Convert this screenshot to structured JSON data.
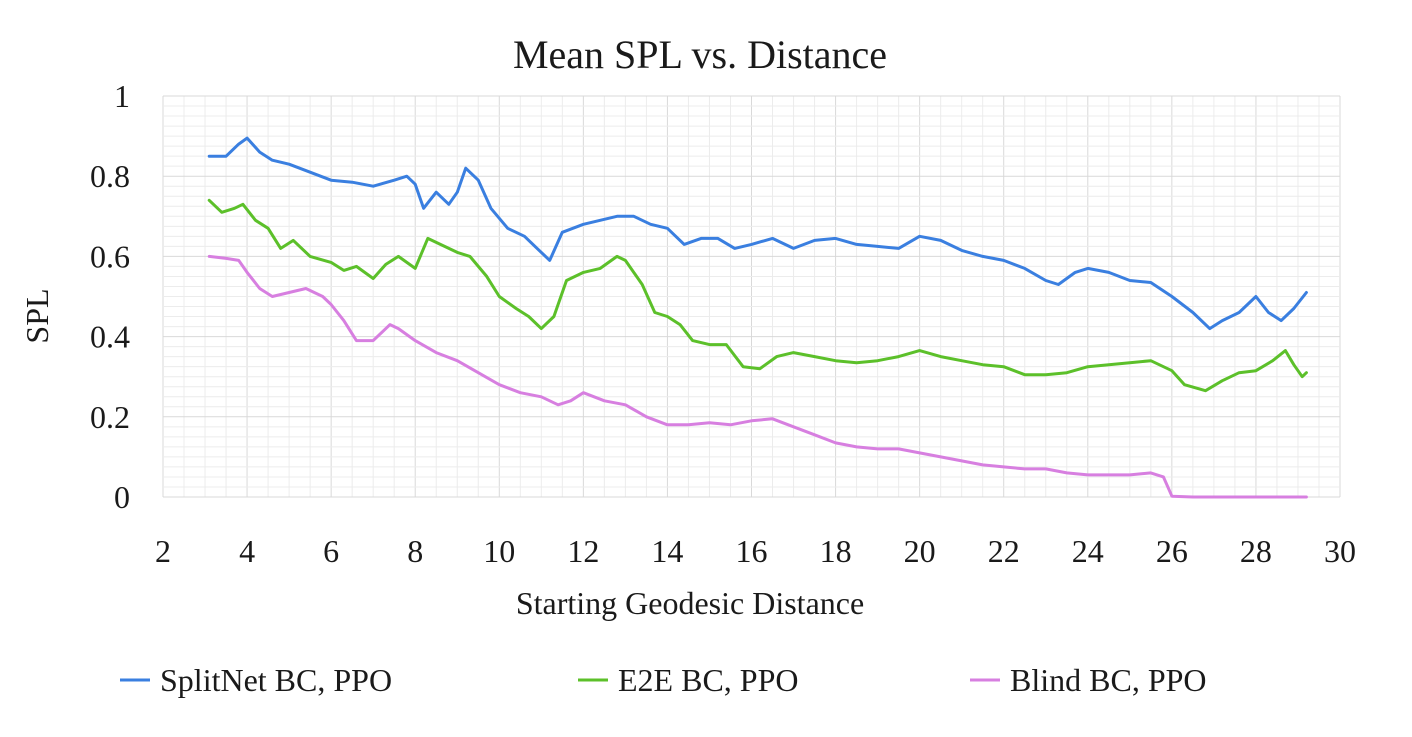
{
  "chart_data": {
    "type": "line",
    "title": "Mean SPL vs. Distance",
    "xlabel": "Starting Geodesic Distance",
    "ylabel": "SPL",
    "xlim": [
      2,
      30
    ],
    "ylim": [
      0,
      1
    ],
    "x_ticks": [
      "2",
      "4",
      "6",
      "8",
      "10",
      "12",
      "14",
      "16",
      "18",
      "20",
      "22",
      "24",
      "26",
      "28",
      "30"
    ],
    "y_ticks": [
      "0",
      "0.2",
      "0.4",
      "0.6",
      "0.8",
      "1"
    ],
    "grid": true,
    "legend_position": "bottom",
    "series": [
      {
        "name": "SplitNet BC, PPO",
        "color": "#3a7fe0",
        "points": [
          [
            3.1,
            0.85
          ],
          [
            3.5,
            0.85
          ],
          [
            3.8,
            0.88
          ],
          [
            4.0,
            0.895
          ],
          [
            4.3,
            0.86
          ],
          [
            4.6,
            0.84
          ],
          [
            5.0,
            0.83
          ],
          [
            5.5,
            0.81
          ],
          [
            6.0,
            0.79
          ],
          [
            6.5,
            0.785
          ],
          [
            7.0,
            0.775
          ],
          [
            7.5,
            0.79
          ],
          [
            7.8,
            0.8
          ],
          [
            8.0,
            0.78
          ],
          [
            8.2,
            0.72
          ],
          [
            8.5,
            0.76
          ],
          [
            8.8,
            0.73
          ],
          [
            9.0,
            0.76
          ],
          [
            9.2,
            0.82
          ],
          [
            9.5,
            0.79
          ],
          [
            9.8,
            0.72
          ],
          [
            10.2,
            0.67
          ],
          [
            10.6,
            0.65
          ],
          [
            10.9,
            0.62
          ],
          [
            11.2,
            0.59
          ],
          [
            11.5,
            0.66
          ],
          [
            12.0,
            0.68
          ],
          [
            12.4,
            0.69
          ],
          [
            12.8,
            0.7
          ],
          [
            13.2,
            0.7
          ],
          [
            13.6,
            0.68
          ],
          [
            14.0,
            0.67
          ],
          [
            14.4,
            0.63
          ],
          [
            14.8,
            0.645
          ],
          [
            15.2,
            0.645
          ],
          [
            15.6,
            0.62
          ],
          [
            16.0,
            0.63
          ],
          [
            16.5,
            0.645
          ],
          [
            17.0,
            0.62
          ],
          [
            17.5,
            0.64
          ],
          [
            18.0,
            0.645
          ],
          [
            18.5,
            0.63
          ],
          [
            19.0,
            0.625
          ],
          [
            19.5,
            0.62
          ],
          [
            20.0,
            0.65
          ],
          [
            20.5,
            0.64
          ],
          [
            21.0,
            0.615
          ],
          [
            21.5,
            0.6
          ],
          [
            22.0,
            0.59
          ],
          [
            22.5,
            0.57
          ],
          [
            23.0,
            0.54
          ],
          [
            23.3,
            0.53
          ],
          [
            23.7,
            0.56
          ],
          [
            24.0,
            0.57
          ],
          [
            24.5,
            0.56
          ],
          [
            25.0,
            0.54
          ],
          [
            25.5,
            0.535
          ],
          [
            26.0,
            0.5
          ],
          [
            26.5,
            0.46
          ],
          [
            26.9,
            0.42
          ],
          [
            27.2,
            0.44
          ],
          [
            27.6,
            0.46
          ],
          [
            28.0,
            0.5
          ],
          [
            28.3,
            0.46
          ],
          [
            28.6,
            0.44
          ],
          [
            28.9,
            0.47
          ],
          [
            29.2,
            0.51
          ]
        ]
      },
      {
        "name": "E2E BC, PPO",
        "color": "#5cc02a",
        "points": [
          [
            3.1,
            0.74
          ],
          [
            3.4,
            0.71
          ],
          [
            3.7,
            0.72
          ],
          [
            3.9,
            0.73
          ],
          [
            4.2,
            0.69
          ],
          [
            4.5,
            0.67
          ],
          [
            4.8,
            0.62
          ],
          [
            5.1,
            0.64
          ],
          [
            5.5,
            0.6
          ],
          [
            6.0,
            0.585
          ],
          [
            6.3,
            0.565
          ],
          [
            6.6,
            0.575
          ],
          [
            7.0,
            0.545
          ],
          [
            7.3,
            0.58
          ],
          [
            7.6,
            0.6
          ],
          [
            8.0,
            0.57
          ],
          [
            8.3,
            0.645
          ],
          [
            8.6,
            0.63
          ],
          [
            9.0,
            0.61
          ],
          [
            9.3,
            0.6
          ],
          [
            9.7,
            0.55
          ],
          [
            10.0,
            0.5
          ],
          [
            10.4,
            0.47
          ],
          [
            10.7,
            0.45
          ],
          [
            11.0,
            0.42
          ],
          [
            11.3,
            0.45
          ],
          [
            11.6,
            0.54
          ],
          [
            12.0,
            0.56
          ],
          [
            12.4,
            0.57
          ],
          [
            12.8,
            0.6
          ],
          [
            13.0,
            0.59
          ],
          [
            13.4,
            0.53
          ],
          [
            13.7,
            0.46
          ],
          [
            14.0,
            0.45
          ],
          [
            14.3,
            0.43
          ],
          [
            14.6,
            0.39
          ],
          [
            15.0,
            0.38
          ],
          [
            15.4,
            0.38
          ],
          [
            15.8,
            0.325
          ],
          [
            16.2,
            0.32
          ],
          [
            16.6,
            0.35
          ],
          [
            17.0,
            0.36
          ],
          [
            17.5,
            0.35
          ],
          [
            18.0,
            0.34
          ],
          [
            18.5,
            0.335
          ],
          [
            19.0,
            0.34
          ],
          [
            19.5,
            0.35
          ],
          [
            20.0,
            0.365
          ],
          [
            20.5,
            0.35
          ],
          [
            21.0,
            0.34
          ],
          [
            21.5,
            0.33
          ],
          [
            22.0,
            0.325
          ],
          [
            22.5,
            0.305
          ],
          [
            23.0,
            0.305
          ],
          [
            23.5,
            0.31
          ],
          [
            24.0,
            0.325
          ],
          [
            24.5,
            0.33
          ],
          [
            25.0,
            0.335
          ],
          [
            25.5,
            0.34
          ],
          [
            26.0,
            0.315
          ],
          [
            26.3,
            0.28
          ],
          [
            26.8,
            0.265
          ],
          [
            27.2,
            0.29
          ],
          [
            27.6,
            0.31
          ],
          [
            28.0,
            0.315
          ],
          [
            28.4,
            0.34
          ],
          [
            28.7,
            0.365
          ],
          [
            28.9,
            0.33
          ],
          [
            29.1,
            0.3
          ],
          [
            29.2,
            0.31
          ]
        ]
      },
      {
        "name": "Blind BC, PPO",
        "color": "#d77fe0",
        "points": [
          [
            3.1,
            0.6
          ],
          [
            3.5,
            0.595
          ],
          [
            3.8,
            0.59
          ],
          [
            4.0,
            0.56
          ],
          [
            4.3,
            0.52
          ],
          [
            4.6,
            0.5
          ],
          [
            5.0,
            0.51
          ],
          [
            5.4,
            0.52
          ],
          [
            5.8,
            0.5
          ],
          [
            6.0,
            0.48
          ],
          [
            6.3,
            0.44
          ],
          [
            6.6,
            0.39
          ],
          [
            7.0,
            0.39
          ],
          [
            7.4,
            0.43
          ],
          [
            7.6,
            0.42
          ],
          [
            8.0,
            0.39
          ],
          [
            8.5,
            0.36
          ],
          [
            9.0,
            0.34
          ],
          [
            9.5,
            0.31
          ],
          [
            10.0,
            0.28
          ],
          [
            10.5,
            0.26
          ],
          [
            11.0,
            0.25
          ],
          [
            11.4,
            0.23
          ],
          [
            11.7,
            0.24
          ],
          [
            12.0,
            0.26
          ],
          [
            12.5,
            0.24
          ],
          [
            13.0,
            0.23
          ],
          [
            13.5,
            0.2
          ],
          [
            14.0,
            0.18
          ],
          [
            14.5,
            0.18
          ],
          [
            15.0,
            0.185
          ],
          [
            15.5,
            0.18
          ],
          [
            16.0,
            0.19
          ],
          [
            16.5,
            0.195
          ],
          [
            17.0,
            0.175
          ],
          [
            17.5,
            0.155
          ],
          [
            18.0,
            0.135
          ],
          [
            18.5,
            0.125
          ],
          [
            19.0,
            0.12
          ],
          [
            19.5,
            0.12
          ],
          [
            20.0,
            0.11
          ],
          [
            20.5,
            0.1
          ],
          [
            21.0,
            0.09
          ],
          [
            21.5,
            0.08
          ],
          [
            22.0,
            0.075
          ],
          [
            22.5,
            0.07
          ],
          [
            23.0,
            0.07
          ],
          [
            23.5,
            0.06
          ],
          [
            24.0,
            0.055
          ],
          [
            24.5,
            0.055
          ],
          [
            25.0,
            0.055
          ],
          [
            25.5,
            0.06
          ],
          [
            25.8,
            0.05
          ],
          [
            26.0,
            0.002
          ],
          [
            26.5,
            0.0
          ],
          [
            27.0,
            0.0
          ],
          [
            28.0,
            0.0
          ],
          [
            29.0,
            0.0
          ],
          [
            29.2,
            0.0
          ]
        ]
      }
    ]
  }
}
